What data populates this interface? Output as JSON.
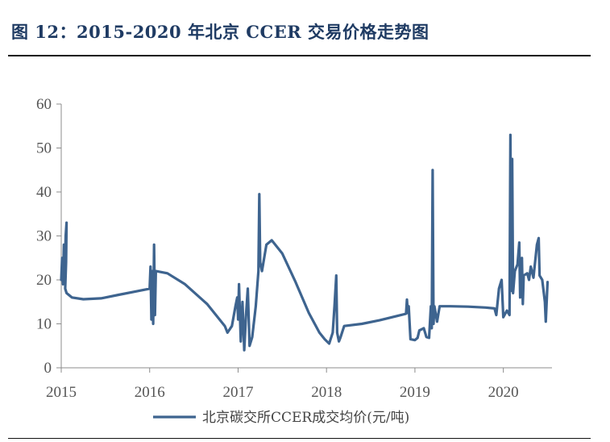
{
  "figure": {
    "title": "图 12：2015-2020 年北京 CCER 交易价格走势图"
  },
  "colors": {
    "line": "#3e648f",
    "axis": "#8c8c8c",
    "text": "#555555"
  },
  "chart_data": {
    "type": "line",
    "title": "",
    "xlabel": "",
    "ylabel": "",
    "xlim": [
      2015.0,
      2020.55
    ],
    "ylim": [
      0,
      60
    ],
    "y_ticks": [
      0,
      10,
      20,
      30,
      40,
      50,
      60
    ],
    "x_ticks": [
      2015,
      2016,
      2017,
      2018,
      2019,
      2020
    ],
    "x_tick_labels": [
      "2015",
      "2016",
      "2017",
      "2018",
      "2019",
      "2020"
    ],
    "grid": false,
    "legend": {
      "position": "bottom-center",
      "entries": [
        "北京碳交所CCER成交均价(元/吨)"
      ]
    },
    "series": [
      {
        "name": "北京碳交所CCER成交均价(元/吨)",
        "points": [
          [
            2015.0,
            20.0
          ],
          [
            2015.01,
            25.0
          ],
          [
            2015.02,
            19.0
          ],
          [
            2015.03,
            28.0
          ],
          [
            2015.04,
            22.0
          ],
          [
            2015.05,
            30.0
          ],
          [
            2015.06,
            33.0
          ],
          [
            2015.055,
            24.0
          ],
          [
            2015.045,
            18.0
          ],
          [
            2015.06,
            17.0
          ],
          [
            2015.12,
            16.0
          ],
          [
            2015.25,
            15.6
          ],
          [
            2015.45,
            15.8
          ],
          [
            2015.65,
            16.6
          ],
          [
            2015.85,
            17.4
          ],
          [
            2016.0,
            18.0
          ],
          [
            2016.01,
            23.0
          ],
          [
            2016.02,
            11.0
          ],
          [
            2016.03,
            22.0
          ],
          [
            2016.04,
            10.0
          ],
          [
            2016.05,
            28.0
          ],
          [
            2016.06,
            12.0
          ],
          [
            2016.07,
            22.0
          ],
          [
            2016.2,
            21.5
          ],
          [
            2016.4,
            19.0
          ],
          [
            2016.65,
            14.5
          ],
          [
            2016.85,
            9.5
          ],
          [
            2016.88,
            8.0
          ],
          [
            2016.93,
            9.5
          ],
          [
            2016.97,
            14.0
          ],
          [
            2016.99,
            16.0
          ],
          [
            2017.0,
            11.0
          ],
          [
            2017.01,
            19.0
          ],
          [
            2017.03,
            6.0
          ],
          [
            2017.05,
            15.0
          ],
          [
            2017.07,
            4.0
          ],
          [
            2017.09,
            12.0
          ],
          [
            2017.11,
            18.0
          ],
          [
            2017.13,
            5.0
          ],
          [
            2017.16,
            7.0
          ],
          [
            2017.2,
            14.0
          ],
          [
            2017.23,
            22.0
          ],
          [
            2017.24,
            39.5
          ],
          [
            2017.25,
            24.0
          ],
          [
            2017.27,
            22.0
          ],
          [
            2017.32,
            28.0
          ],
          [
            2017.38,
            29.0
          ],
          [
            2017.5,
            26.0
          ],
          [
            2017.65,
            19.5
          ],
          [
            2017.8,
            12.5
          ],
          [
            2017.92,
            8.0
          ],
          [
            2017.98,
            6.5
          ],
          [
            2018.03,
            5.5
          ],
          [
            2018.07,
            8.0
          ],
          [
            2018.09,
            14.0
          ],
          [
            2018.11,
            21.0
          ],
          [
            2018.12,
            8.0
          ],
          [
            2018.14,
            6.0
          ],
          [
            2018.16,
            7.0
          ],
          [
            2018.2,
            9.5
          ],
          [
            2018.4,
            10.0
          ],
          [
            2018.6,
            10.8
          ],
          [
            2018.8,
            11.8
          ],
          [
            2018.9,
            12.3
          ],
          [
            2018.91,
            15.5
          ],
          [
            2018.92,
            12.5
          ],
          [
            2018.93,
            14.0
          ],
          [
            2018.95,
            6.5
          ],
          [
            2019.0,
            6.3
          ],
          [
            2019.03,
            6.8
          ],
          [
            2019.05,
            8.5
          ],
          [
            2019.1,
            9.0
          ],
          [
            2019.13,
            7.0
          ],
          [
            2019.16,
            6.8
          ],
          [
            2019.18,
            14.0
          ],
          [
            2019.19,
            9.0
          ],
          [
            2019.2,
            45.0
          ],
          [
            2019.21,
            10.0
          ],
          [
            2019.22,
            14.0
          ],
          [
            2019.25,
            10.5
          ],
          [
            2019.28,
            14.0
          ],
          [
            2019.4,
            14.0
          ],
          [
            2019.6,
            13.9
          ],
          [
            2019.8,
            13.7
          ],
          [
            2019.9,
            13.5
          ],
          [
            2019.92,
            12.0
          ],
          [
            2019.95,
            18.0
          ],
          [
            2019.98,
            20.0
          ],
          [
            2020.0,
            11.5
          ],
          [
            2020.04,
            13.0
          ],
          [
            2020.07,
            12.0
          ],
          [
            2020.08,
            53.0
          ],
          [
            2020.09,
            17.5
          ],
          [
            2020.1,
            47.5
          ],
          [
            2020.11,
            17.0
          ],
          [
            2020.13,
            22.0
          ],
          [
            2020.16,
            23.5
          ],
          [
            2020.18,
            28.5
          ],
          [
            2020.19,
            16.0
          ],
          [
            2020.21,
            25.0
          ],
          [
            2020.22,
            14.5
          ],
          [
            2020.23,
            21.0
          ],
          [
            2020.27,
            21.5
          ],
          [
            2020.29,
            20.0
          ],
          [
            2020.31,
            23.0
          ],
          [
            2020.34,
            20.5
          ],
          [
            2020.38,
            28.0
          ],
          [
            2020.4,
            29.5
          ],
          [
            2020.41,
            21.0
          ],
          [
            2020.44,
            20.0
          ],
          [
            2020.47,
            15.0
          ],
          [
            2020.48,
            10.5
          ],
          [
            2020.5,
            19.5
          ]
        ]
      }
    ]
  }
}
